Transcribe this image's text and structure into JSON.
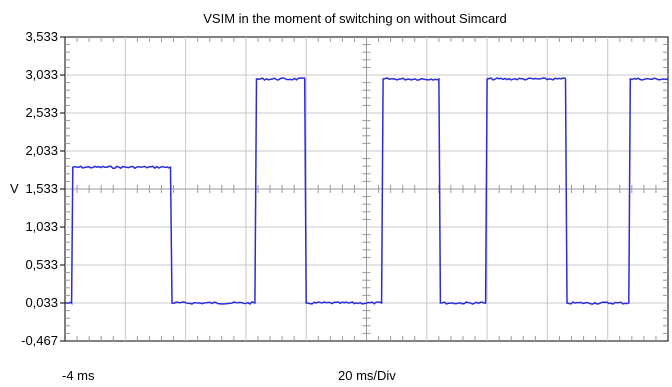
{
  "chart_data": {
    "type": "line",
    "title": "VSIM in the moment of switching on without Simcard",
    "ylabel": "V",
    "x_start_label": "-4 ms",
    "x_scale_label": "20 ms/Div",
    "ylim": [
      -0.467,
      3.533
    ],
    "y_ticks": [
      "3,533",
      "3,033",
      "2,533",
      "2,033",
      "1,533",
      "1,033",
      "0,533",
      "0,033",
      "-0,467"
    ],
    "y_tick_values": [
      3.533,
      3.033,
      2.533,
      2.033,
      1.533,
      1.033,
      0.533,
      0.033,
      -0.467
    ],
    "x_unit": "ms",
    "xlim": [
      -4,
      196
    ],
    "x_divisions": 10,
    "grid": true,
    "series": [
      {
        "color": "#2b2bd9",
        "x": [
          -4,
          -1.8,
          -1.4,
          31,
          31.5,
          59,
          59.5,
          75.5,
          76,
          101,
          101.5,
          120,
          120.5,
          135.5,
          136,
          162,
          162.5,
          183,
          183.5,
          196
        ],
        "y": [
          0.033,
          0.033,
          1.82,
          1.82,
          0.033,
          0.033,
          2.98,
          2.98,
          0.033,
          0.033,
          2.98,
          2.98,
          0.033,
          0.033,
          2.98,
          2.98,
          0.033,
          0.033,
          2.98,
          2.98
        ]
      }
    ]
  }
}
